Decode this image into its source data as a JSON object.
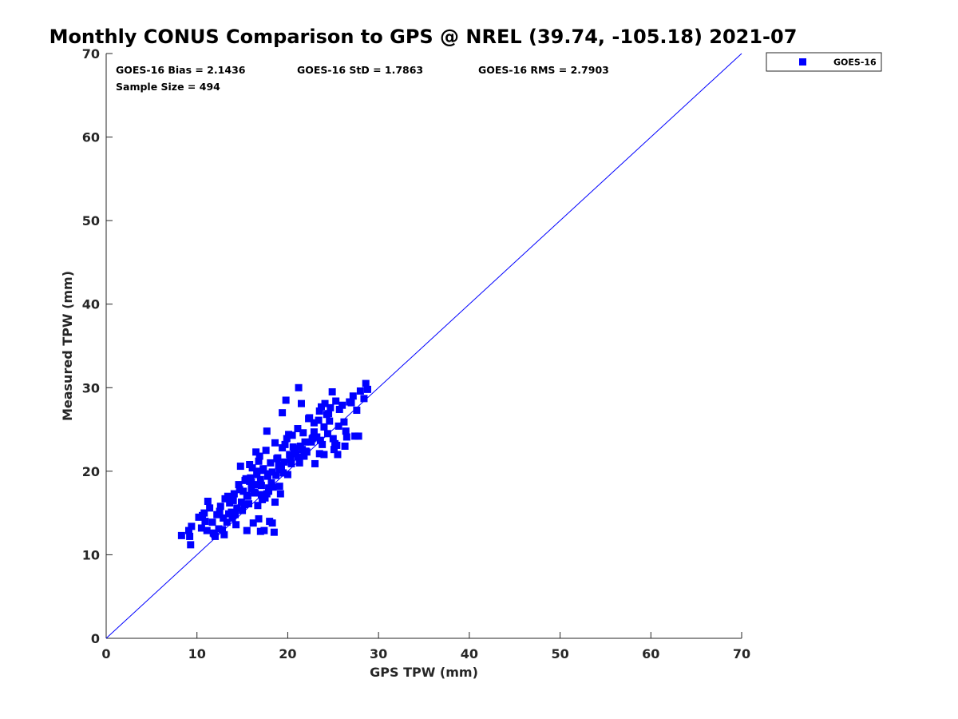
{
  "chart_data": {
    "type": "scatter",
    "title": "Monthly CONUS Comparison to GPS @ NREL (39.74, -105.18) 2021-07",
    "xlabel": "GPS TPW (mm)",
    "ylabel": "Measured TPW (mm)",
    "xlim": [
      0,
      70
    ],
    "ylim": [
      0,
      70
    ],
    "xticks": [
      "0",
      "10",
      "20",
      "30",
      "40",
      "50",
      "60",
      "70"
    ],
    "yticks": [
      "0",
      "10",
      "20",
      "30",
      "40",
      "50",
      "60",
      "70"
    ],
    "grid": false,
    "legend_position": "top-right outside",
    "stats": {
      "bias": "GOES-16 Bias = 2.1436",
      "std": "GOES-16 StD = 1.7863",
      "rms": "GOES-16 RMS = 2.7903",
      "sample": "Sample Size = 494"
    },
    "reference_line": {
      "x": [
        0,
        70
      ],
      "y": [
        0,
        70
      ],
      "color": "#0000ff"
    },
    "series": [
      {
        "name": "GOES-16",
        "color": "#0000ff",
        "marker": "square",
        "x": [
          8.3,
          9.1,
          9.3,
          9.2,
          9.4,
          10.2,
          10.5,
          10.8,
          10.9,
          11.1,
          11.4,
          11.7,
          11.9,
          12.2,
          12.4,
          12.6,
          12.9,
          13.1,
          13.3,
          13.6,
          13.8,
          14.1,
          14.4,
          14.6,
          14.9,
          15.1,
          15.4,
          15.6,
          15.8,
          16.1,
          16.3,
          16.6,
          16.8,
          17.1,
          17.3,
          17.6,
          17.8,
          18.1,
          18.3,
          18.6,
          18.8,
          19.1,
          19.4,
          19.6,
          19.9,
          20.2,
          20.5,
          20.8,
          21.1,
          21.4,
          21.7,
          22.0,
          22.3,
          22.6,
          22.9,
          23.2,
          23.5,
          23.8,
          24.1,
          24.4,
          24.7,
          25.0,
          25.3,
          25.6,
          26.0,
          26.4,
          26.8,
          27.2,
          27.6,
          28.0,
          28.4,
          28.8,
          11.2,
          12.0,
          12.8,
          13.5,
          14.2,
          15.0,
          15.7,
          16.4,
          17.2,
          17.9,
          18.7,
          19.5,
          20.3,
          21.1,
          21.9,
          22.7,
          23.5,
          24.3,
          25.1,
          10.6,
          11.8,
          13.0,
          14.3,
          15.5,
          16.7,
          17.9,
          19.1,
          20.4,
          21.6,
          22.8,
          24.0,
          25.2,
          14.8,
          15.9,
          16.9,
          17.5,
          18.2,
          19.0,
          12.5,
          13.9,
          16.2,
          17.4,
          18.5,
          19.8,
          21.2,
          22.4,
          23.7,
          24.9,
          26.2,
          27.4,
          28.6,
          15.3,
          16.0,
          16.6,
          17.0,
          17.7,
          18.4,
          18.9,
          19.3,
          20.0,
          20.6,
          21.3,
          22.1,
          22.9,
          23.6,
          24.5,
          25.4,
          13.4,
          14.0,
          14.7,
          15.2,
          15.8,
          16.4,
          17.1,
          17.8,
          18.6,
          19.4,
          20.1,
          20.9,
          21.8,
          15.5,
          17.0,
          18.0,
          19.2,
          21.5,
          23.0,
          24.0,
          26.5,
          16.8,
          18.3,
          19.7,
          20.7,
          16.0,
          17.3,
          16.5,
          17.7,
          24.6,
          25.7,
          27.0,
          23.4,
          25.5,
          26.3,
          27.8
        ],
        "y": [
          12.3,
          12.9,
          11.2,
          12.2,
          13.4,
          14.5,
          13.2,
          15.0,
          14.0,
          12.9,
          15.6,
          13.9,
          12.5,
          14.8,
          13.1,
          15.8,
          14.4,
          16.7,
          13.9,
          16.2,
          15.1,
          17.3,
          15.6,
          18.4,
          16.3,
          17.6,
          19.1,
          17.0,
          18.8,
          20.4,
          17.5,
          19.6,
          21.2,
          18.3,
          20.1,
          22.5,
          19.4,
          21.0,
          19.9,
          23.4,
          21.5,
          20.2,
          22.8,
          21.1,
          23.9,
          22.0,
          24.3,
          22.7,
          25.1,
          23.0,
          24.6,
          22.4,
          26.3,
          23.5,
          25.8,
          24.1,
          27.2,
          23.2,
          28.1,
          24.5,
          27.6,
          23.9,
          28.4,
          25.4,
          27.9,
          24.8,
          28.3,
          29.0,
          27.3,
          29.6,
          28.7,
          29.8,
          16.4,
          12.2,
          13.0,
          14.9,
          14.8,
          15.3,
          16.1,
          17.4,
          16.6,
          18.0,
          19.5,
          19.8,
          21.4,
          21.7,
          23.5,
          23.9,
          22.1,
          26.8,
          22.6,
          14.7,
          12.6,
          12.4,
          13.6,
          17.1,
          15.9,
          17.6,
          18.2,
          20.9,
          22.6,
          24.0,
          25.3,
          23.3,
          20.6,
          19.2,
          21.8,
          16.8,
          18.6,
          20.7,
          15.2,
          14.4,
          13.8,
          12.9,
          12.7,
          28.5,
          30.0,
          26.4,
          27.7,
          29.5,
          25.9,
          24.2,
          30.5,
          18.9,
          17.9,
          20.0,
          19.0,
          17.3,
          18.1,
          21.6,
          20.3,
          19.6,
          22.9,
          21.0,
          22.3,
          24.7,
          23.7,
          26.9,
          23.1,
          17.0,
          16.5,
          17.8,
          16.0,
          20.8,
          18.4,
          17.2,
          19.7,
          16.3,
          27.0,
          24.4,
          22.1,
          21.8,
          12.9,
          12.8,
          14.0,
          17.3,
          28.1,
          20.9,
          22.0,
          24.1,
          14.3,
          13.8,
          23.2,
          22.5,
          18.7,
          20.3,
          22.3,
          24.8,
          26.0,
          27.4,
          28.2,
          26.1,
          22.0,
          23.0,
          24.2
        ]
      }
    ]
  }
}
